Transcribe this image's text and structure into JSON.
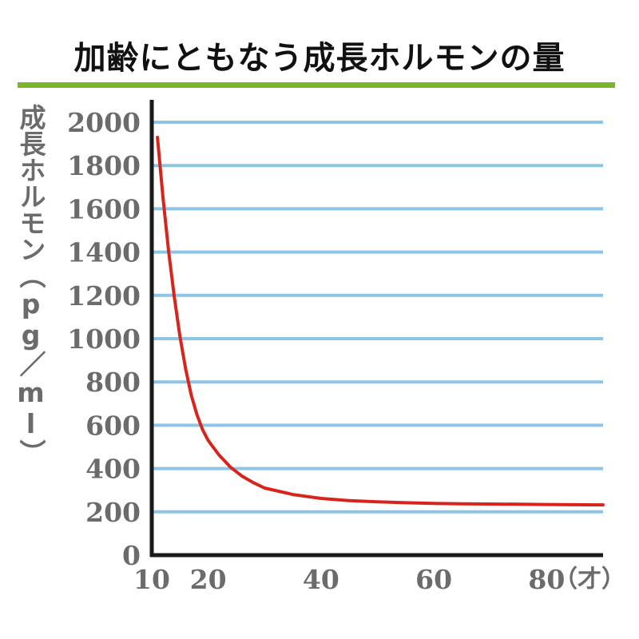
{
  "title": "加齢にともなう成長ホルモンの量",
  "colors": {
    "title_rule": "#7bb52b",
    "grid": "#8ec5e6",
    "axis": "#1a1a1a",
    "curve": "#d7251c",
    "text": "#6b6b6b"
  },
  "chart_data": {
    "type": "line",
    "title": "加齢にともなう成長ホルモンの量",
    "ylabel": "成長ホルモン（pg／ml）",
    "xlabel": "",
    "x_unit_label": "（才）",
    "xlim": [
      10,
      90
    ],
    "ylim": [
      0,
      2000
    ],
    "x_ticks": [
      10,
      20,
      40,
      60,
      80
    ],
    "y_ticks": [
      0,
      200,
      400,
      600,
      800,
      1000,
      1200,
      1400,
      1600,
      1800,
      2000
    ],
    "grid": true,
    "series": [
      {
        "x": [
          11,
          12,
          13,
          14,
          15,
          16,
          17,
          18,
          19,
          20,
          22,
          24,
          26,
          28,
          30,
          35,
          40,
          45,
          50,
          55,
          60,
          65,
          70,
          75,
          80,
          85,
          90
        ],
        "y": [
          1930,
          1650,
          1400,
          1190,
          1010,
          860,
          740,
          650,
          580,
          530,
          460,
          405,
          365,
          335,
          310,
          280,
          262,
          252,
          246,
          242,
          239,
          237,
          236,
          235,
          234,
          233,
          232
        ]
      }
    ]
  }
}
